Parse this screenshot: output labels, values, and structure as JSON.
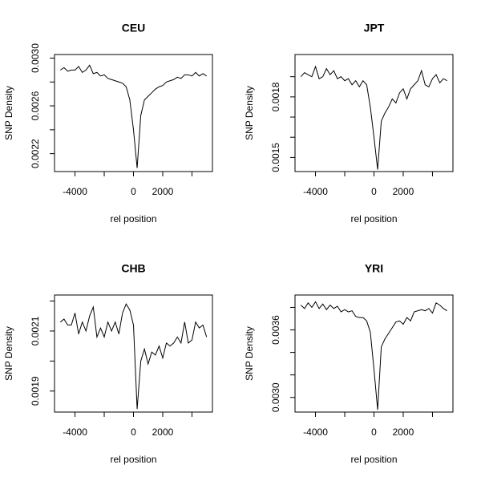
{
  "chart_data": [
    {
      "type": "line",
      "title": "CEU",
      "xlabel": "rel position",
      "ylabel": "SNP Density",
      "color": "#000000",
      "x": [
        -5000,
        -4750,
        -4500,
        -4250,
        -4000,
        -3750,
        -3500,
        -3250,
        -3000,
        -2750,
        -2500,
        -2250,
        -2000,
        -1750,
        -1500,
        -1250,
        -1000,
        -750,
        -500,
        -250,
        0,
        250,
        500,
        750,
        1000,
        1250,
        1500,
        1750,
        2000,
        2250,
        2500,
        2750,
        3000,
        3250,
        3500,
        3750,
        4000,
        4250,
        4500,
        4750,
        5000
      ],
      "values": [
        0.0029,
        0.00292,
        0.00289,
        0.0029,
        0.0029,
        0.00293,
        0.00288,
        0.0029,
        0.00294,
        0.00287,
        0.00288,
        0.00285,
        0.00286,
        0.00283,
        0.00282,
        0.00281,
        0.0028,
        0.00279,
        0.00276,
        0.00265,
        0.0024,
        0.00208,
        0.00252,
        0.00265,
        0.00268,
        0.00271,
        0.00274,
        0.00276,
        0.00277,
        0.0028,
        0.00281,
        0.00282,
        0.00284,
        0.00283,
        0.00286,
        0.00286,
        0.00285,
        0.00288,
        0.00285,
        0.00287,
        0.00285
      ],
      "xlim": [
        -5400,
        5400
      ],
      "ylim": [
        0.00205,
        0.00303
      ],
      "xticks": [
        -4000,
        {
          "value": -2000,
          "label": null
        },
        0,
        2000,
        {
          "value": 4000,
          "label": null
        }
      ],
      "yticks": [
        0.0022,
        {
          "value": 0.0024,
          "label": null
        },
        0.0026,
        {
          "value": 0.0028,
          "label": null
        },
        {
          "value": 0.003,
          "label": "0.0030"
        }
      ]
    },
    {
      "type": "line",
      "title": "JPT",
      "xlabel": "rel position",
      "ylabel": "SNP Density",
      "color": "#000000",
      "x": [
        -5000,
        -4750,
        -4500,
        -4250,
        -4000,
        -3750,
        -3500,
        -3250,
        -3000,
        -2750,
        -2500,
        -2250,
        -2000,
        -1750,
        -1500,
        -1250,
        -1000,
        -750,
        -500,
        -250,
        0,
        250,
        500,
        750,
        1000,
        1250,
        1500,
        1750,
        2000,
        2250,
        2500,
        2750,
        3000,
        3250,
        3500,
        3750,
        4000,
        4250,
        4500,
        4750,
        5000
      ],
      "values": [
        0.0019,
        0.00192,
        0.00191,
        0.0019,
        0.00195,
        0.00189,
        0.0019,
        0.00194,
        0.00191,
        0.00193,
        0.00189,
        0.0019,
        0.00188,
        0.00189,
        0.00186,
        0.00188,
        0.00185,
        0.00188,
        0.00186,
        0.00175,
        0.0016,
        0.00144,
        0.00168,
        0.00172,
        0.00175,
        0.00179,
        0.00177,
        0.00182,
        0.00184,
        0.00179,
        0.00184,
        0.00186,
        0.00188,
        0.00193,
        0.00186,
        0.00185,
        0.00189,
        0.00191,
        0.00187,
        0.00189,
        0.00188
      ],
      "xlim": [
        -5400,
        5400
      ],
      "ylim": [
        0.00143,
        0.00201
      ],
      "xticks": [
        -4000,
        {
          "value": -2000,
          "label": null
        },
        0,
        2000,
        {
          "value": 4000,
          "label": null
        }
      ],
      "yticks": [
        0.0015,
        {
          "value": 0.0016,
          "label": null
        },
        {
          "value": 0.0017,
          "label": null
        },
        0.0018,
        {
          "value": 0.0019,
          "label": null
        }
      ]
    },
    {
      "type": "line",
      "title": "CHB",
      "xlabel": "rel position",
      "ylabel": "SNP Density",
      "color": "#000000",
      "x": [
        -5000,
        -4750,
        -4500,
        -4250,
        -4000,
        -3750,
        -3500,
        -3250,
        -3000,
        -2750,
        -2500,
        -2250,
        -2000,
        -1750,
        -1500,
        -1250,
        -1000,
        -750,
        -500,
        -250,
        0,
        250,
        500,
        750,
        1000,
        1250,
        1500,
        1750,
        2000,
        2250,
        2500,
        2750,
        3000,
        3250,
        3500,
        3750,
        4000,
        4250,
        4500,
        4750,
        5000
      ],
      "values": [
        0.00213,
        0.00214,
        0.00212,
        0.00212,
        0.00216,
        0.00209,
        0.00213,
        0.0021,
        0.00215,
        0.00218,
        0.00208,
        0.00211,
        0.00208,
        0.00213,
        0.0021,
        0.00213,
        0.00209,
        0.00216,
        0.00219,
        0.00217,
        0.00212,
        0.00184,
        0.002,
        0.00204,
        0.00199,
        0.00203,
        0.00202,
        0.00205,
        0.00201,
        0.00206,
        0.00205,
        0.00206,
        0.00208,
        0.00206,
        0.00213,
        0.00206,
        0.00207,
        0.00213,
        0.00211,
        0.00212,
        0.00208
      ],
      "xlim": [
        -5400,
        5400
      ],
      "ylim": [
        0.00183,
        0.00222
      ],
      "xticks": [
        -4000,
        {
          "value": -2000,
          "label": null
        },
        0,
        2000,
        {
          "value": 4000,
          "label": null
        }
      ],
      "yticks": [
        0.0019,
        {
          "value": 0.002,
          "label": null
        },
        0.0021,
        {
          "value": 0.0022,
          "label": null
        }
      ]
    },
    {
      "type": "line",
      "title": "YRI",
      "xlabel": "rel position",
      "ylabel": "SNP Density",
      "color": "#000000",
      "x": [
        -5000,
        -4750,
        -4500,
        -4250,
        -4000,
        -3750,
        -3500,
        -3250,
        -3000,
        -2750,
        -2500,
        -2250,
        -2000,
        -1750,
        -1500,
        -1250,
        -1000,
        -750,
        -500,
        -250,
        0,
        250,
        500,
        750,
        1000,
        1250,
        1500,
        1750,
        2000,
        2250,
        2500,
        2750,
        3000,
        3250,
        3500,
        3750,
        4000,
        4250,
        4500,
        4750,
        5000
      ],
      "values": [
        0.00382,
        0.00379,
        0.00384,
        0.0038,
        0.00385,
        0.00379,
        0.00383,
        0.00378,
        0.00382,
        0.00379,
        0.00381,
        0.00376,
        0.00378,
        0.00376,
        0.00377,
        0.00372,
        0.00371,
        0.00371,
        0.00368,
        0.00358,
        0.00325,
        0.00289,
        0.00345,
        0.00352,
        0.00357,
        0.00362,
        0.00367,
        0.00368,
        0.00365,
        0.00371,
        0.00368,
        0.00376,
        0.00377,
        0.00378,
        0.00377,
        0.00379,
        0.00375,
        0.00384,
        0.00382,
        0.00379,
        0.00377
      ],
      "xlim": [
        -5400,
        5400
      ],
      "ylim": [
        0.00287,
        0.00391
      ],
      "xticks": [
        -4000,
        {
          "value": -2000,
          "label": null
        },
        0,
        2000,
        {
          "value": 4000,
          "label": null
        }
      ],
      "yticks": [
        {
          "value": 0.003,
          "label": "0.0030"
        },
        {
          "value": 0.0032,
          "label": null
        },
        {
          "value": 0.0034,
          "label": null
        },
        0.0036,
        {
          "value": 0.0038,
          "label": null
        }
      ]
    }
  ]
}
